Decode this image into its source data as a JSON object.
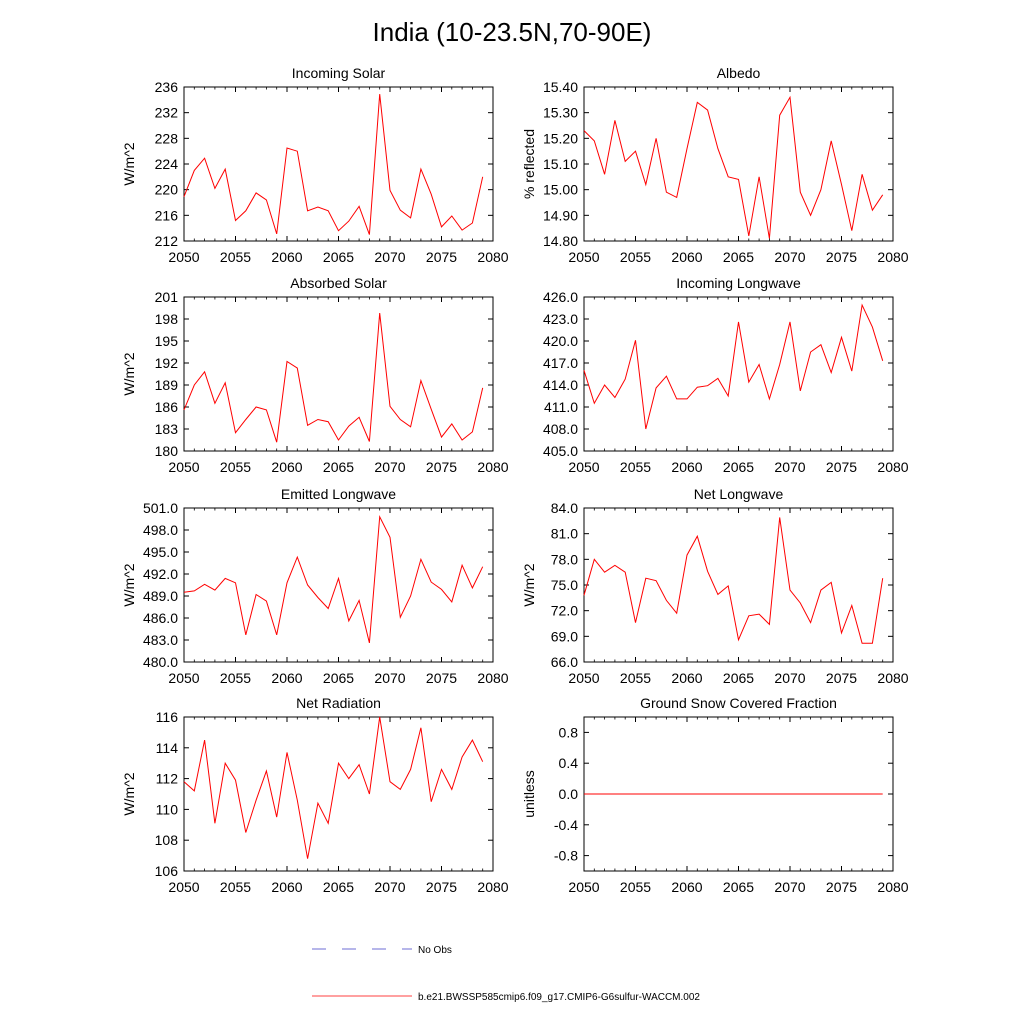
{
  "page_title": "India (10-23.5N,70-90E)",
  "colors": {
    "series": "#ff0000",
    "obs": "#3c3cc8",
    "axis": "#000000"
  },
  "legend": {
    "obs_label": "No Obs",
    "model_label": "b.e21.BWSSP585cmip6.f09_g17.CMIP6-G6sulfur-WACCM.002"
  },
  "chart_data": [
    {
      "type": "line",
      "title": "Incoming Solar",
      "ylabel": "W/m^2",
      "xlim": [
        2050,
        2080
      ],
      "ylim": [
        212,
        236
      ],
      "xticks": [
        "2050",
        "2055",
        "2060",
        "2065",
        "2070",
        "2075",
        "2080"
      ],
      "yticks": [
        "212",
        "216",
        "220",
        "224",
        "228",
        "232",
        "236"
      ],
      "grid": false,
      "x": [
        2050,
        2051,
        2052,
        2053,
        2054,
        2055,
        2056,
        2057,
        2058,
        2059,
        2060,
        2061,
        2062,
        2063,
        2064,
        2065,
        2066,
        2067,
        2068,
        2069,
        2070,
        2071,
        2072,
        2073,
        2074,
        2075,
        2076,
        2077,
        2078,
        2079
      ],
      "values": [
        218.9,
        223.0,
        224.9,
        220.2,
        223.2,
        215.2,
        216.7,
        219.5,
        218.4,
        213.1,
        226.5,
        226.0,
        216.7,
        217.3,
        216.7,
        213.6,
        215.1,
        217.4,
        213.0,
        234.9,
        219.9,
        216.8,
        215.6,
        223.2,
        219.3,
        214.2,
        215.9,
        213.7,
        214.8,
        222.0
      ]
    },
    {
      "type": "line",
      "title": "Albedo",
      "ylabel": "% reflected",
      "xlim": [
        2050,
        2080
      ],
      "ylim": [
        14.8,
        15.4
      ],
      "xticks": [
        "2050",
        "2055",
        "2060",
        "2065",
        "2070",
        "2075",
        "2080"
      ],
      "yticks": [
        "14.80",
        "14.90",
        "15.00",
        "15.10",
        "15.20",
        "15.30",
        "15.40"
      ],
      "grid": false,
      "x": [
        2050,
        2051,
        2052,
        2053,
        2054,
        2055,
        2056,
        2057,
        2058,
        2059,
        2060,
        2061,
        2062,
        2063,
        2064,
        2065,
        2066,
        2067,
        2068,
        2069,
        2070,
        2071,
        2072,
        2073,
        2074,
        2075,
        2076,
        2077,
        2078,
        2079
      ],
      "values": [
        15.23,
        15.19,
        15.06,
        15.27,
        15.11,
        15.15,
        15.02,
        15.2,
        14.99,
        14.97,
        15.16,
        15.34,
        15.31,
        15.16,
        15.05,
        15.04,
        14.82,
        15.05,
        14.81,
        15.29,
        15.36,
        14.99,
        14.9,
        15.0,
        15.19,
        15.02,
        14.84,
        15.06,
        14.92,
        14.98
      ]
    },
    {
      "type": "line",
      "title": "Absorbed Solar",
      "ylabel": "W/m^2",
      "xlim": [
        2050,
        2080
      ],
      "ylim": [
        180,
        201
      ],
      "xticks": [
        "2050",
        "2055",
        "2060",
        "2065",
        "2070",
        "2075",
        "2080"
      ],
      "yticks": [
        "180",
        "183",
        "186",
        "189",
        "192",
        "195",
        "198",
        "201"
      ],
      "grid": false,
      "x": [
        2050,
        2051,
        2052,
        2053,
        2054,
        2055,
        2056,
        2057,
        2058,
        2059,
        2060,
        2061,
        2062,
        2063,
        2064,
        2065,
        2066,
        2067,
        2068,
        2069,
        2070,
        2071,
        2072,
        2073,
        2074,
        2075,
        2076,
        2077,
        2078,
        2079
      ],
      "values": [
        185.6,
        189.0,
        190.8,
        186.5,
        189.3,
        182.5,
        184.3,
        186.0,
        185.6,
        181.2,
        192.2,
        191.3,
        183.5,
        184.3,
        184.0,
        181.5,
        183.4,
        184.6,
        181.3,
        198.8,
        186.1,
        184.3,
        183.3,
        189.6,
        185.7,
        181.9,
        183.7,
        181.5,
        182.6,
        188.6
      ]
    },
    {
      "type": "line",
      "title": "Incoming Longwave",
      "ylabel": "",
      "xlim": [
        2050,
        2080
      ],
      "ylim": [
        405,
        426
      ],
      "xticks": [
        "2050",
        "2055",
        "2060",
        "2065",
        "2070",
        "2075",
        "2080"
      ],
      "yticks": [
        "405.0",
        "408.0",
        "411.0",
        "414.0",
        "417.0",
        "420.0",
        "423.0",
        "426.0"
      ],
      "grid": false,
      "x": [
        2050,
        2051,
        2052,
        2053,
        2054,
        2055,
        2056,
        2057,
        2058,
        2059,
        2060,
        2061,
        2062,
        2063,
        2064,
        2065,
        2066,
        2067,
        2068,
        2069,
        2070,
        2071,
        2072,
        2073,
        2074,
        2075,
        2076,
        2077,
        2078,
        2079
      ],
      "values": [
        416.0,
        411.5,
        414.0,
        412.3,
        414.8,
        420.1,
        408.0,
        413.6,
        415.2,
        412.1,
        412.1,
        413.7,
        413.9,
        414.9,
        412.5,
        422.6,
        414.4,
        416.8,
        412.1,
        416.8,
        422.6,
        413.2,
        418.5,
        419.5,
        415.7,
        420.5,
        415.9,
        424.9,
        421.9,
        417.3
      ]
    },
    {
      "type": "line",
      "title": "Emitted Longwave",
      "ylabel": "W/m^2",
      "xlim": [
        2050,
        2080
      ],
      "ylim": [
        480,
        501
      ],
      "xticks": [
        "2050",
        "2055",
        "2060",
        "2065",
        "2070",
        "2075",
        "2080"
      ],
      "yticks": [
        "480.0",
        "483.0",
        "486.0",
        "489.0",
        "492.0",
        "495.0",
        "498.0",
        "501.0"
      ],
      "grid": false,
      "x": [
        2050,
        2051,
        2052,
        2053,
        2054,
        2055,
        2056,
        2057,
        2058,
        2059,
        2060,
        2061,
        2062,
        2063,
        2064,
        2065,
        2066,
        2067,
        2068,
        2069,
        2070,
        2071,
        2072,
        2073,
        2074,
        2075,
        2076,
        2077,
        2078,
        2079
      ],
      "values": [
        489.5,
        489.7,
        490.6,
        489.8,
        491.4,
        490.8,
        483.7,
        489.2,
        488.3,
        483.7,
        490.8,
        494.3,
        490.5,
        488.8,
        487.3,
        491.4,
        485.6,
        488.4,
        482.6,
        499.8,
        497.0,
        486.1,
        489.0,
        494.0,
        490.9,
        489.9,
        488.2,
        493.2,
        490.1,
        493.0
      ]
    },
    {
      "type": "line",
      "title": "Net Longwave",
      "ylabel": "W/m^2",
      "xlim": [
        2050,
        2080
      ],
      "ylim": [
        66,
        84
      ],
      "xticks": [
        "2050",
        "2055",
        "2060",
        "2065",
        "2070",
        "2075",
        "2080"
      ],
      "yticks": [
        "66.0",
        "69.0",
        "72.0",
        "75.0",
        "78.0",
        "81.0",
        "84.0"
      ],
      "grid": false,
      "x": [
        2050,
        2051,
        2052,
        2053,
        2054,
        2055,
        2056,
        2057,
        2058,
        2059,
        2060,
        2061,
        2062,
        2063,
        2064,
        2065,
        2066,
        2067,
        2068,
        2069,
        2070,
        2071,
        2072,
        2073,
        2074,
        2075,
        2076,
        2077,
        2078,
        2079
      ],
      "values": [
        73.8,
        78.0,
        76.5,
        77.3,
        76.5,
        70.6,
        75.8,
        75.5,
        73.2,
        71.7,
        78.5,
        80.7,
        76.6,
        73.9,
        74.9,
        68.6,
        71.4,
        71.6,
        70.4,
        82.9,
        74.4,
        72.9,
        70.6,
        74.4,
        75.3,
        69.4,
        72.6,
        68.2,
        68.2,
        75.8
      ]
    },
    {
      "type": "line",
      "title": "Net Radiation",
      "ylabel": "W/m^2",
      "xlim": [
        2050,
        2080
      ],
      "ylim": [
        106,
        116
      ],
      "xticks": [
        "2050",
        "2055",
        "2060",
        "2065",
        "2070",
        "2075",
        "2080"
      ],
      "yticks": [
        "106",
        "108",
        "110",
        "112",
        "114",
        "116"
      ],
      "grid": false,
      "x": [
        2050,
        2051,
        2052,
        2053,
        2054,
        2055,
        2056,
        2057,
        2058,
        2059,
        2060,
        2061,
        2062,
        2063,
        2064,
        2065,
        2066,
        2067,
        2068,
        2069,
        2070,
        2071,
        2072,
        2073,
        2074,
        2075,
        2076,
        2077,
        2078,
        2079
      ],
      "values": [
        111.8,
        111.2,
        114.5,
        109.1,
        113.0,
        111.9,
        108.5,
        110.6,
        112.5,
        109.5,
        113.7,
        110.6,
        106.8,
        110.4,
        109.1,
        113.0,
        112.0,
        112.9,
        111.0,
        116.0,
        111.8,
        111.3,
        112.6,
        115.3,
        110.5,
        112.6,
        111.3,
        113.4,
        114.5,
        113.1
      ]
    },
    {
      "type": "line",
      "title": "Ground Snow Covered Fraction",
      "ylabel": "unitless",
      "xlim": [
        2050,
        2080
      ],
      "ylim": [
        -1.0,
        1.0
      ],
      "xticks": [
        "2050",
        "2055",
        "2060",
        "2065",
        "2070",
        "2075",
        "2080"
      ],
      "yticks": [
        "-0.8",
        "-0.4",
        "0.0",
        "0.4",
        "0.8"
      ],
      "yticks_at": [
        -0.8,
        -0.4,
        0.0,
        0.4,
        0.8
      ],
      "grid": false,
      "x": [
        2050,
        2079
      ],
      "values": [
        0.0,
        0.0
      ]
    }
  ]
}
